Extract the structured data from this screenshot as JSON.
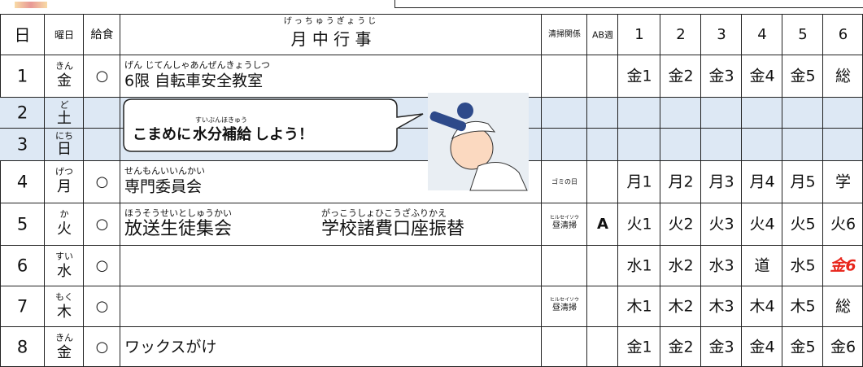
{
  "header": {
    "day": "日",
    "weekday": "曜日",
    "lunch": "給食",
    "events_ruby": "げっちゅうぎょうじ",
    "events": "月 中 行 事",
    "cleaning": "清掃関係",
    "ab": "AB週",
    "periods": [
      "1",
      "2",
      "3",
      "4",
      "5",
      "6"
    ]
  },
  "rows": [
    {
      "day": "1",
      "weekday_ruby": "きん",
      "weekday": "金",
      "lunch": "○",
      "events": [
        {
          "ruby": "げん じてんしゃあんぜんきょうしつ",
          "text": "6限 自転車安全教室"
        }
      ],
      "periods": [
        {
          "text": "金1"
        },
        {
          "text": "金2"
        },
        {
          "text": "金3"
        },
        {
          "text": "金4"
        },
        {
          "text": "金5"
        },
        {
          "text": "総"
        }
      ]
    },
    {
      "day": "2",
      "weekday_ruby": "ど",
      "weekday": "土",
      "shaded": true
    },
    {
      "day": "3",
      "weekday_ruby": "にち",
      "weekday": "日",
      "shaded": true
    },
    {
      "day": "4",
      "weekday_ruby": "げつ",
      "weekday": "月",
      "lunch": "○",
      "events": [
        {
          "ruby": "せんもんいいんかい",
          "text": "専門委員会"
        }
      ],
      "cleaning": "ゴミの日",
      "periods": [
        {
          "text": "月1"
        },
        {
          "text": "月2"
        },
        {
          "text": "月3"
        },
        {
          "text": "月4"
        },
        {
          "text": "月5"
        },
        {
          "text": "学"
        }
      ]
    },
    {
      "day": "5",
      "weekday_ruby": "か",
      "weekday": "火",
      "lunch": "○",
      "events": [
        {
          "ruby": "ほうそうせいとしゅうかい",
          "text": "放送生徒集会"
        },
        {
          "ruby": "がっこうしょひこうざふりかえ",
          "text": "学校諸費口座振替"
        }
      ],
      "cleaning_ruby": "ヒルセイソウ",
      "cleaning": "昼清掃",
      "ab": "A",
      "periods": [
        {
          "text": "火1"
        },
        {
          "text": "火2"
        },
        {
          "text": "火3"
        },
        {
          "text": "火4"
        },
        {
          "text": "火5"
        },
        {
          "text": "火6"
        }
      ]
    },
    {
      "day": "6",
      "weekday_ruby": "すい",
      "weekday": "水",
      "lunch": "○",
      "periods": [
        {
          "text": "水1"
        },
        {
          "text": "水2"
        },
        {
          "text": "水3"
        },
        {
          "text": "道"
        },
        {
          "text": "水5"
        },
        {
          "text": "金6",
          "color": "#e8251b"
        }
      ]
    },
    {
      "day": "7",
      "weekday_ruby": "もく",
      "weekday": "木",
      "lunch": "○",
      "cleaning_ruby": "ヒルセイソウ",
      "cleaning": "昼清掃",
      "periods": [
        {
          "text": "木1"
        },
        {
          "text": "木2"
        },
        {
          "text": "木3"
        },
        {
          "text": "木4"
        },
        {
          "text": "木5"
        },
        {
          "text": "総"
        }
      ]
    },
    {
      "day": "8",
      "weekday_ruby": "きん",
      "weekday": "金",
      "lunch": "○",
      "events": [
        {
          "text": "ワックスがけ"
        }
      ],
      "periods": [
        {
          "text": "金1"
        },
        {
          "text": "金2"
        },
        {
          "text": "金3"
        },
        {
          "text": "金4"
        },
        {
          "text": "金5"
        },
        {
          "text": "金6"
        }
      ]
    }
  ],
  "bubble": {
    "before": "こまめに",
    "ruby": "すいぶんほきゅう",
    "emphasis": "水分補給",
    "after": "しよう！"
  },
  "shade_color": "#dde8f4"
}
